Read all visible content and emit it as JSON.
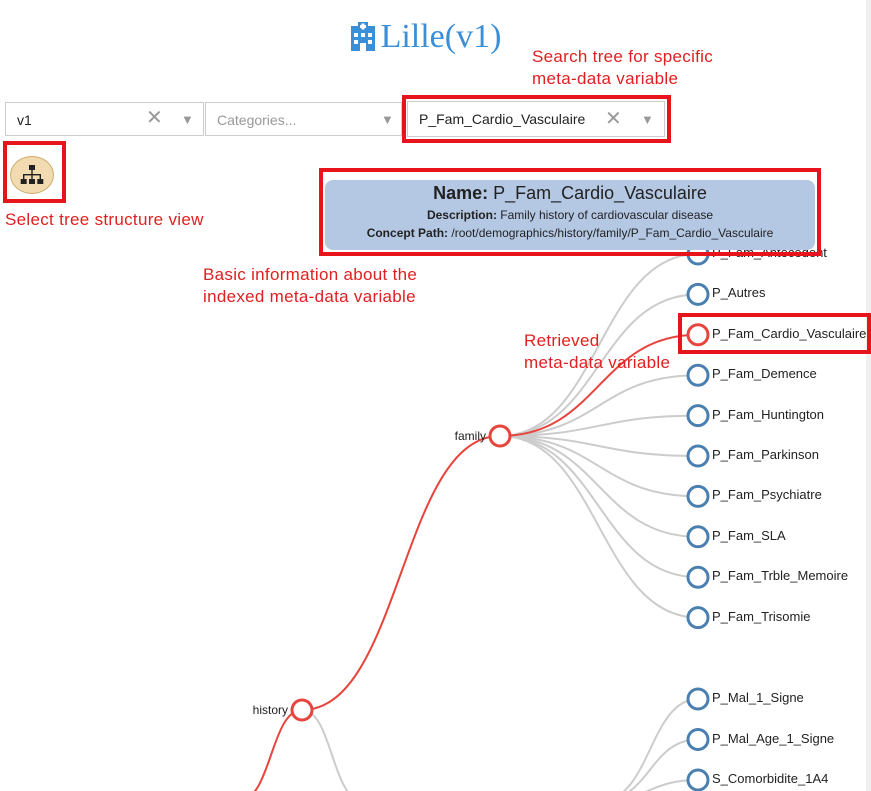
{
  "header": {
    "title": "Lille(v1)"
  },
  "filters": {
    "version": {
      "value": "v1"
    },
    "categories": {
      "placeholder": "Categories..."
    },
    "search": {
      "value": "P_Fam_Cardio_Vasculaire"
    },
    "clear_glyph": "✕",
    "arrow_glyph": "▼"
  },
  "annotations": {
    "search_line1": "Search tree for specific",
    "search_line2": "meta-data variable",
    "tree_view": "Select tree structure view",
    "info_line1": "Basic information about the",
    "info_line2": "indexed meta-data variable",
    "retrieved_line1": "Retrieved",
    "retrieved_line2": "meta-data variable"
  },
  "tooltip": {
    "name_label": "Name:",
    "name_value": "P_Fam_Cardio_Vasculaire",
    "description_label": "Description:",
    "description_value": "Family history of cardiovascular disease",
    "path_label": "Concept Path:",
    "path_value": "/root/demographics/history/family/P_Fam_Cardio_Vasculaire"
  },
  "tree": {
    "inner_nodes": [
      "family",
      "history"
    ],
    "family_children": [
      "P_Fam_Antecedent",
      "P_Autres",
      "P_Fam_Cardio_Vasculaire",
      "P_Fam_Demence",
      "P_Fam_Huntington",
      "P_Fam_Parkinson",
      "P_Fam_Psychiatre",
      "P_Fam_SLA",
      "P_Fam_Trble_Memoire",
      "P_Fam_Trisomie"
    ],
    "other_children": [
      "P_Mal_1_Signe",
      "P_Mal_Age_1_Signe",
      "S_Comorbidite_1A4"
    ],
    "highlight_color": "#e8433c",
    "node_color": "#4a7fb0",
    "link_color": "#cccccc"
  }
}
